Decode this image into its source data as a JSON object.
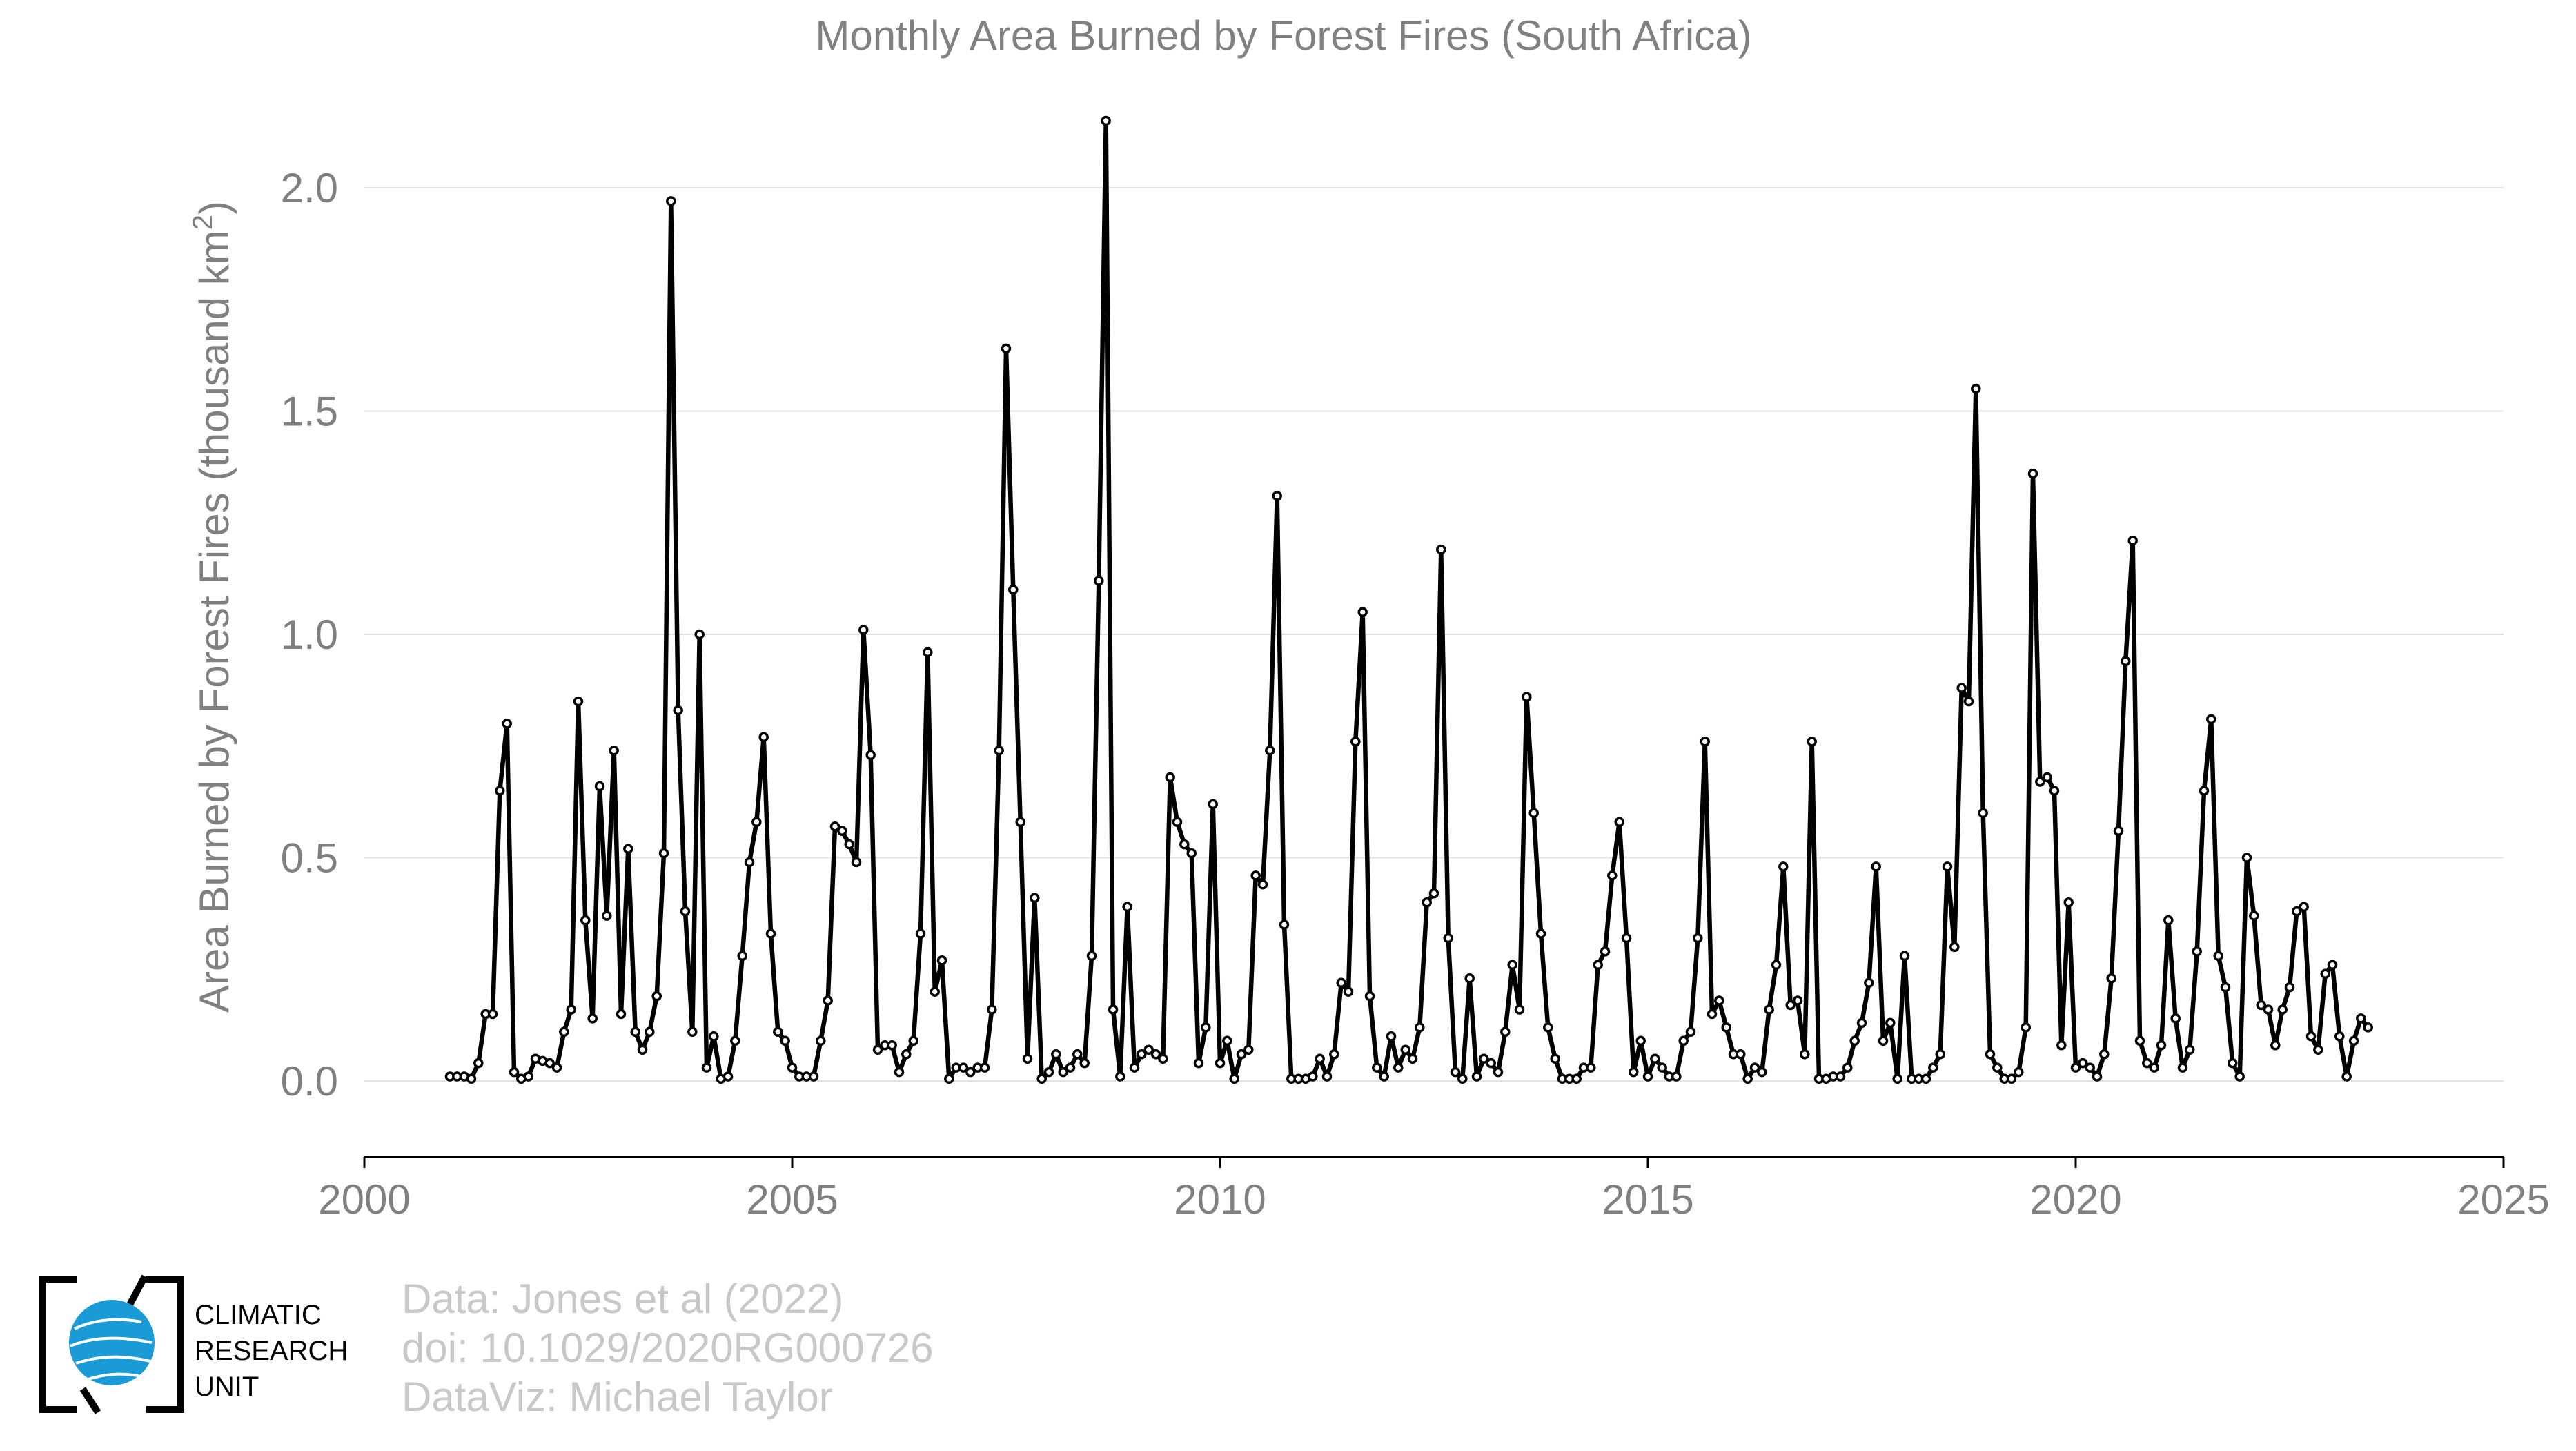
{
  "chart_data": {
    "type": "line",
    "title": "Monthly Area Burned by Forest Fires (South Africa)",
    "ylabel_main": "Area Burned by Forest Fires (thousand km",
    "ylabel_sup": "2",
    "ylabel_end": ")",
    "xlim": [
      2000,
      2025
    ],
    "ylim": [
      -0.17,
      2.15
    ],
    "x_ticks": [
      2000,
      2005,
      2010,
      2015,
      2020,
      2025
    ],
    "x_tick_labels": [
      "2000",
      "2005",
      "2010",
      "2015",
      "2020",
      "2025"
    ],
    "y_ticks": [
      0.0,
      0.5,
      1.0,
      1.5,
      2.0
    ],
    "y_tick_labels": [
      "0.0",
      "0.5",
      "1.0",
      "1.5",
      "2.0"
    ],
    "grid": "horizontal",
    "line_color": "#000000",
    "start": "2001-01",
    "series": [
      {
        "values": [
          0.01,
          0.01,
          0.01,
          0.005,
          0.04,
          0.15,
          0.15,
          0.65,
          0.8,
          0.02,
          0.005,
          0.01,
          0.05,
          0.045,
          0.04,
          0.03,
          0.11,
          0.16,
          0.85,
          0.36,
          0.14,
          0.66,
          0.37,
          0.74,
          0.15,
          0.52,
          0.11,
          0.07,
          0.11,
          0.19,
          0.51,
          1.97,
          0.83,
          0.38,
          0.11,
          1.0,
          0.03,
          0.1,
          0.005,
          0.01,
          0.09,
          0.28,
          0.49,
          0.58,
          0.77,
          0.33,
          0.11,
          0.09,
          0.03,
          0.01,
          0.01,
          0.01,
          0.09,
          0.18,
          0.57,
          0.56,
          0.53,
          0.49,
          1.01,
          0.73,
          0.07,
          0.08,
          0.08,
          0.02,
          0.06,
          0.09,
          0.33,
          0.96,
          0.2,
          0.27,
          0.005,
          0.03,
          0.03,
          0.02,
          0.03,
          0.03,
          0.16,
          0.74,
          1.64,
          1.1,
          0.58,
          0.05,
          0.41,
          0.005,
          0.02,
          0.06,
          0.02,
          0.03,
          0.06,
          0.04,
          0.28,
          1.12,
          2.15,
          0.16,
          0.01,
          0.39,
          0.03,
          0.06,
          0.07,
          0.06,
          0.05,
          0.68,
          0.58,
          0.53,
          0.51,
          0.04,
          0.12,
          0.62,
          0.04,
          0.09,
          0.005,
          0.06,
          0.07,
          0.46,
          0.44,
          0.74,
          1.31,
          0.35,
          0.005,
          0.005,
          0.005,
          0.01,
          0.05,
          0.01,
          0.06,
          0.22,
          0.2,
          0.76,
          1.05,
          0.19,
          0.03,
          0.01,
          0.1,
          0.03,
          0.07,
          0.05,
          0.12,
          0.4,
          0.42,
          1.19,
          0.32,
          0.02,
          0.005,
          0.23,
          0.01,
          0.05,
          0.04,
          0.02,
          0.11,
          0.26,
          0.16,
          0.86,
          0.6,
          0.33,
          0.12,
          0.05,
          0.005,
          0.005,
          0.005,
          0.03,
          0.03,
          0.26,
          0.29,
          0.46,
          0.58,
          0.32,
          0.02,
          0.09,
          0.01,
          0.05,
          0.03,
          0.01,
          0.01,
          0.09,
          0.11,
          0.32,
          0.76,
          0.15,
          0.18,
          0.12,
          0.06,
          0.06,
          0.005,
          0.03,
          0.02,
          0.16,
          0.26,
          0.48,
          0.17,
          0.18,
          0.06,
          0.76,
          0.005,
          0.005,
          0.01,
          0.01,
          0.03,
          0.09,
          0.13,
          0.22,
          0.48,
          0.09,
          0.13,
          0.005,
          0.28,
          0.005,
          0.005,
          0.005,
          0.03,
          0.06,
          0.48,
          0.3,
          0.88,
          0.85,
          1.55,
          0.6,
          0.06,
          0.03,
          0.005,
          0.005,
          0.02,
          0.12,
          1.36,
          0.67,
          0.68,
          0.65,
          0.08,
          0.4,
          0.03,
          0.04,
          0.03,
          0.01,
          0.06,
          0.23,
          0.56,
          0.94,
          1.21,
          0.09,
          0.04,
          0.03,
          0.08,
          0.36,
          0.14,
          0.03,
          0.07,
          0.29,
          0.65,
          0.81,
          0.28,
          0.21,
          0.04,
          0.01,
          0.5,
          0.37,
          0.17,
          0.16,
          0.08,
          0.16,
          0.21,
          0.38,
          0.39,
          0.1,
          0.07,
          0.24,
          0.26,
          0.1,
          0.01,
          0.09,
          0.14,
          0.12
        ]
      }
    ]
  },
  "footer": {
    "credit_line1": "Data: Jones et al (2022)",
    "credit_line2": "doi: 10.1029/2020RG000726",
    "credit_line3": "DataViz: Michael Taylor"
  },
  "logo": {
    "line1": "CLIMATIC",
    "line2": "RESEARCH",
    "line3": "UNIT",
    "globe_color": "#1a9ad6"
  }
}
